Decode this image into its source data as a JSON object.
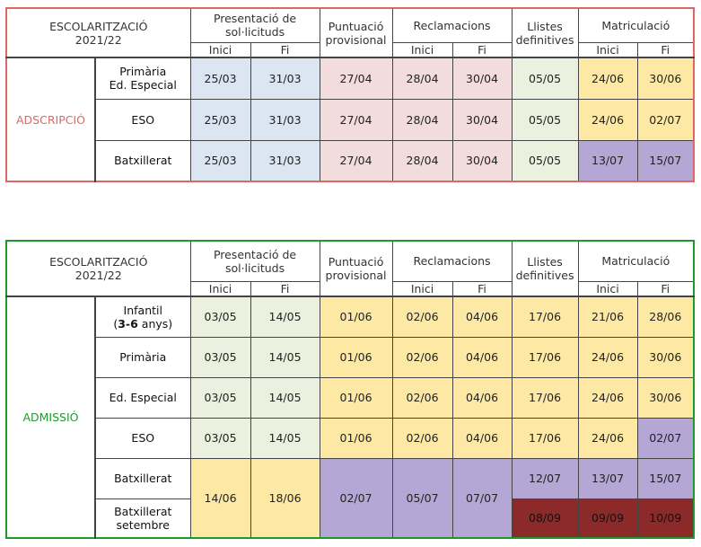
{
  "header": {
    "escolaritzacio": "ESCOLARITZACIÓ",
    "year": "2021/22",
    "presentacio": "Presentació de sol·licituds",
    "puntuacio": "Puntuació provisional",
    "reclamacions": "Reclamacions",
    "llistes": "Llistes definitives",
    "matriculacio": "Matriculació",
    "inici": "Inici",
    "fi": "Fi"
  },
  "adscripcio": {
    "label": "ADSCRIPCIÓ",
    "rows": [
      {
        "label1": "Primària",
        "label2": "Ed. Especial",
        "pres_inici": "25/03",
        "pres_fi": "31/03",
        "punt": "27/04",
        "rec_inici": "28/04",
        "rec_fi": "30/04",
        "llistes": "05/05",
        "mat_inici": "24/06",
        "mat_fi": "30/06"
      },
      {
        "label1": "ESO",
        "label2": "",
        "pres_inici": "25/03",
        "pres_fi": "31/03",
        "punt": "27/04",
        "rec_inici": "28/04",
        "rec_fi": "30/04",
        "llistes": "05/05",
        "mat_inici": "24/06",
        "mat_fi": "02/07"
      },
      {
        "label1": "Batxillerat",
        "label2": "",
        "pres_inici": "25/03",
        "pres_fi": "31/03",
        "punt": "27/04",
        "rec_inici": "28/04",
        "rec_fi": "30/04",
        "llistes": "05/05",
        "mat_inici": "13/07",
        "mat_fi": "15/07"
      }
    ]
  },
  "admissio": {
    "label": "ADMISSIÓ",
    "infantil": {
      "label1": "Infantil",
      "label2_bold": "3-6",
      "label2_rest": " anys",
      "label2_open": "(",
      "label2_close": ")",
      "pres_inici": "03/05",
      "pres_fi": "14/05",
      "punt": "01/06",
      "rec_inici": "02/06",
      "rec_fi": "04/06",
      "llistes": "17/06",
      "mat_inici": "21/06",
      "mat_fi": "28/06"
    },
    "rows": [
      {
        "label1": "Primària",
        "pres_inici": "03/05",
        "pres_fi": "14/05",
        "punt": "01/06",
        "rec_inici": "02/06",
        "rec_fi": "04/06",
        "llistes": "17/06",
        "mat_inici": "24/06",
        "mat_fi": "30/06"
      },
      {
        "label1": "Ed. Especial",
        "pres_inici": "03/05",
        "pres_fi": "14/05",
        "punt": "01/06",
        "rec_inici": "02/06",
        "rec_fi": "04/06",
        "llistes": "17/06",
        "mat_inici": "24/06",
        "mat_fi": "30/06"
      },
      {
        "label1": "ESO",
        "pres_inici": "03/05",
        "pres_fi": "14/05",
        "punt": "01/06",
        "rec_inici": "02/06",
        "rec_fi": "04/06",
        "llistes": "17/06",
        "mat_inici": "24/06",
        "mat_fi": "02/07"
      }
    ],
    "batxillerat": {
      "label1": "Batxillerat",
      "pres_inici": "14/06",
      "pres_fi": "18/06",
      "punt": "02/07",
      "rec_inici": "05/07",
      "rec_fi": "07/07",
      "llistes": "12/07",
      "mat_inici": "13/07",
      "mat_fi": "15/07"
    },
    "setembre": {
      "label1": "Batxillerat",
      "label2": "setembre",
      "llistes": "08/09",
      "mat_inici": "09/09",
      "mat_fi": "10/09"
    }
  },
  "colors": {
    "adscripcio_border": "#e06666",
    "admissio_border": "#1e9a2a",
    "blue": "#dce6f2",
    "pink": "#f2dcdc",
    "green": "#ebf1de",
    "yellow": "#fde9a3",
    "purple": "#b4a7d6",
    "red": "#8c2a2a"
  }
}
